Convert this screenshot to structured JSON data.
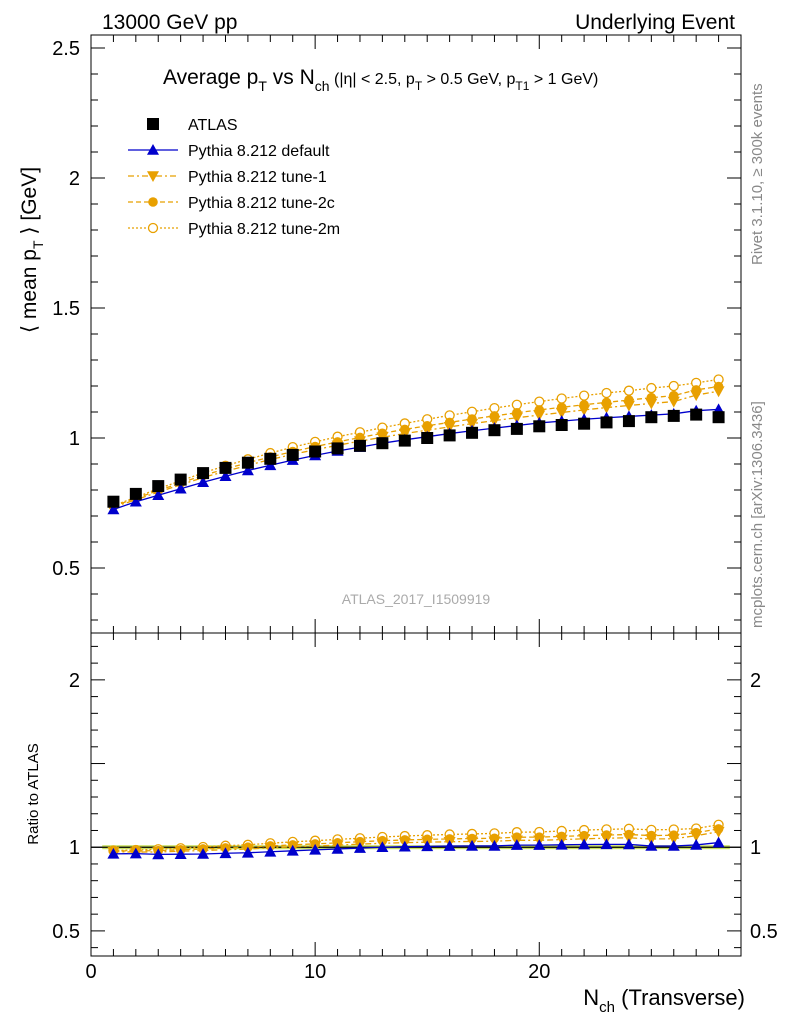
{
  "header": {
    "left": "13000 GeV pp",
    "right": "Underlying Event"
  },
  "title": {
    "main": "Average p",
    "main_sub": "T",
    "vs": " vs N",
    "vs_sub": "ch",
    "cuts_a": " (|η| < 2.5, p",
    "cuts_a_sub": "T",
    "cuts_b": " > 0.5 GeV, p",
    "cuts_b_sub": "T1",
    "cuts_c": " > 1 GeV)"
  },
  "ylabel": {
    "pre": "⟨ mean p",
    "sub": "T",
    "post": " ⟩ [GeV]"
  },
  "ratio_ylabel": "Ratio to ATLAS",
  "xlabel": {
    "pre": "N",
    "sub": "ch",
    "post": " (Transverse)"
  },
  "watermark": "ATLAS_2017_I1509919",
  "side_text_top": "Rivet 3.1.10, ≥ 300k events",
  "side_text_bottom": "mcplots.cern.ch [arXiv:1306.3436]",
  "colors": {
    "atlas": "#000000",
    "default": "#0000cc",
    "tune": "#e8a000",
    "ratio_band": "#c8e060"
  },
  "chart_data": {
    "type": "scatter",
    "x": [
      1,
      2,
      3,
      4,
      5,
      6,
      7,
      8,
      9,
      10,
      11,
      12,
      13,
      14,
      15,
      16,
      17,
      18,
      19,
      20,
      21,
      22,
      23,
      24,
      25,
      26,
      27,
      28
    ],
    "xlim": [
      0,
      29
    ],
    "ylim": [
      0.25,
      2.55
    ],
    "xticks": [
      "0",
      "10",
      "20"
    ],
    "yticks": [
      "0.5",
      "1",
      "1.5",
      "2",
      "2.5"
    ],
    "series": [
      {
        "name": "ATLAS",
        "marker": "square",
        "values": [
          0.755,
          0.785,
          0.815,
          0.84,
          0.865,
          0.885,
          0.905,
          0.92,
          0.935,
          0.948,
          0.96,
          0.97,
          0.98,
          0.99,
          1.0,
          1.01,
          1.02,
          1.03,
          1.035,
          1.045,
          1.05,
          1.055,
          1.06,
          1.065,
          1.08,
          1.085,
          1.09,
          1.08
        ]
      },
      {
        "name": "Pythia 8.212 default",
        "marker": "triangle-up",
        "values": [
          0.725,
          0.755,
          0.78,
          0.805,
          0.83,
          0.853,
          0.875,
          0.895,
          0.915,
          0.933,
          0.95,
          0.965,
          0.98,
          0.993,
          1.005,
          1.017,
          1.028,
          1.038,
          1.048,
          1.058,
          1.065,
          1.072,
          1.078,
          1.083,
          1.088,
          1.093,
          1.105,
          1.11
        ]
      },
      {
        "name": "Pythia 8.212 tune-1",
        "marker": "triangle-down",
        "values": [
          0.735,
          0.762,
          0.792,
          0.82,
          0.848,
          0.872,
          0.895,
          0.917,
          0.937,
          0.955,
          0.972,
          0.988,
          1.003,
          1.017,
          1.03,
          1.043,
          1.055,
          1.067,
          1.078,
          1.088,
          1.098,
          1.108,
          1.117,
          1.125,
          1.133,
          1.14,
          1.165,
          1.18
        ]
      },
      {
        "name": "Pythia 8.212 tune-2c",
        "marker": "circle",
        "values": [
          0.738,
          0.768,
          0.798,
          0.827,
          0.856,
          0.881,
          0.905,
          0.927,
          0.948,
          0.967,
          0.985,
          1.002,
          1.018,
          1.033,
          1.047,
          1.06,
          1.073,
          1.085,
          1.097,
          1.108,
          1.118,
          1.128,
          1.137,
          1.146,
          1.155,
          1.163,
          1.185,
          1.198
        ]
      },
      {
        "name": "Pythia 8.212 tune-2m",
        "marker": "open-circle",
        "values": [
          0.74,
          0.772,
          0.805,
          0.835,
          0.866,
          0.893,
          0.918,
          0.942,
          0.965,
          0.985,
          1.005,
          1.022,
          1.04,
          1.056,
          1.072,
          1.087,
          1.101,
          1.115,
          1.128,
          1.14,
          1.152,
          1.163,
          1.173,
          1.182,
          1.192,
          1.2,
          1.212,
          1.225
        ]
      }
    ],
    "ratio": {
      "ylim": [
        0.35,
        2.28
      ],
      "yticks": [
        "0.5",
        "1",
        "2"
      ]
    }
  }
}
